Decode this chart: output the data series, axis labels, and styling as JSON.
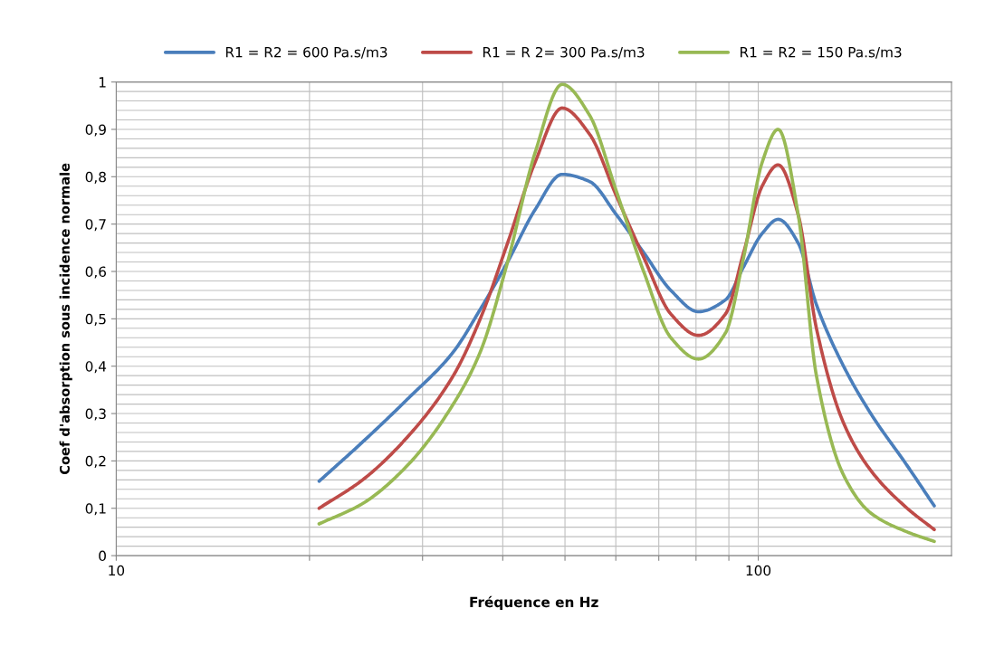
{
  "chart_data": {
    "type": "line",
    "xlabel": "Fréquence en Hz",
    "ylabel": "Coef d'absorption sous incidence normale",
    "x": [
      20.7,
      24.2,
      28.4,
      33.5,
      36.9,
      40.7,
      44.9,
      49.5,
      54.6,
      60.1,
      66.3,
      73.1,
      80.7,
      88.9,
      94.9,
      101.4,
      107.4,
      115.4,
      123.2,
      135.8,
      149.7,
      170.6,
      188
    ],
    "series": [
      {
        "name": "R1 = R2 = 600 Pa.s/m3",
        "color": "#4a7ebb",
        "values": [
          0.157,
          0.24,
          0.33,
          0.43,
          0.52,
          0.62,
          0.73,
          0.805,
          0.79,
          0.72,
          0.64,
          0.56,
          0.515,
          0.54,
          0.61,
          0.68,
          0.71,
          0.66,
          0.53,
          0.4,
          0.3,
          0.19,
          0.105
        ]
      },
      {
        "name": "R1 = R 2= 300 Pa.s/m3",
        "color": "#be4b48",
        "values": [
          0.1,
          0.16,
          0.25,
          0.38,
          0.5,
          0.66,
          0.83,
          0.945,
          0.89,
          0.76,
          0.63,
          0.51,
          0.465,
          0.51,
          0.64,
          0.78,
          0.825,
          0.72,
          0.48,
          0.28,
          0.18,
          0.1,
          0.055
        ]
      },
      {
        "name": "R1 = R2 = 150 Pa.s/m3",
        "color": "#98b954",
        "values": [
          0.067,
          0.11,
          0.19,
          0.32,
          0.43,
          0.62,
          0.85,
          0.995,
          0.93,
          0.77,
          0.6,
          0.46,
          0.415,
          0.47,
          0.63,
          0.83,
          0.9,
          0.72,
          0.38,
          0.17,
          0.09,
          0.05,
          0.03
        ]
      }
    ],
    "log": "x",
    "xlim": [
      10,
      200
    ],
    "xticks": [
      10,
      {
        "value": 20,
        "label": null
      },
      {
        "value": 30,
        "label": null
      },
      {
        "value": 40,
        "label": null
      },
      {
        "value": 50,
        "label": null
      },
      {
        "value": 60,
        "label": null
      },
      {
        "value": 70,
        "label": null
      },
      {
        "value": 80,
        "label": null
      },
      {
        "value": 90,
        "label": null
      },
      100
    ],
    "ylim": [
      0,
      1
    ],
    "yticks": [
      0,
      {
        "value": 0.1,
        "label": "0,1"
      },
      {
        "value": 0.2,
        "label": "0,2"
      },
      {
        "value": 0.3,
        "label": "0,3"
      },
      {
        "value": 0.4,
        "label": "0,4"
      },
      {
        "value": 0.5,
        "label": "0,5"
      },
      {
        "value": 0.6,
        "label": "0,6"
      },
      {
        "value": 0.7,
        "label": "0,7"
      },
      {
        "value": 0.8,
        "label": "0,8"
      },
      {
        "value": 0.9,
        "label": "0,9"
      },
      1
    ],
    "grid": true,
    "legend": "top",
    "marker": "none",
    "line_style": "solid"
  }
}
